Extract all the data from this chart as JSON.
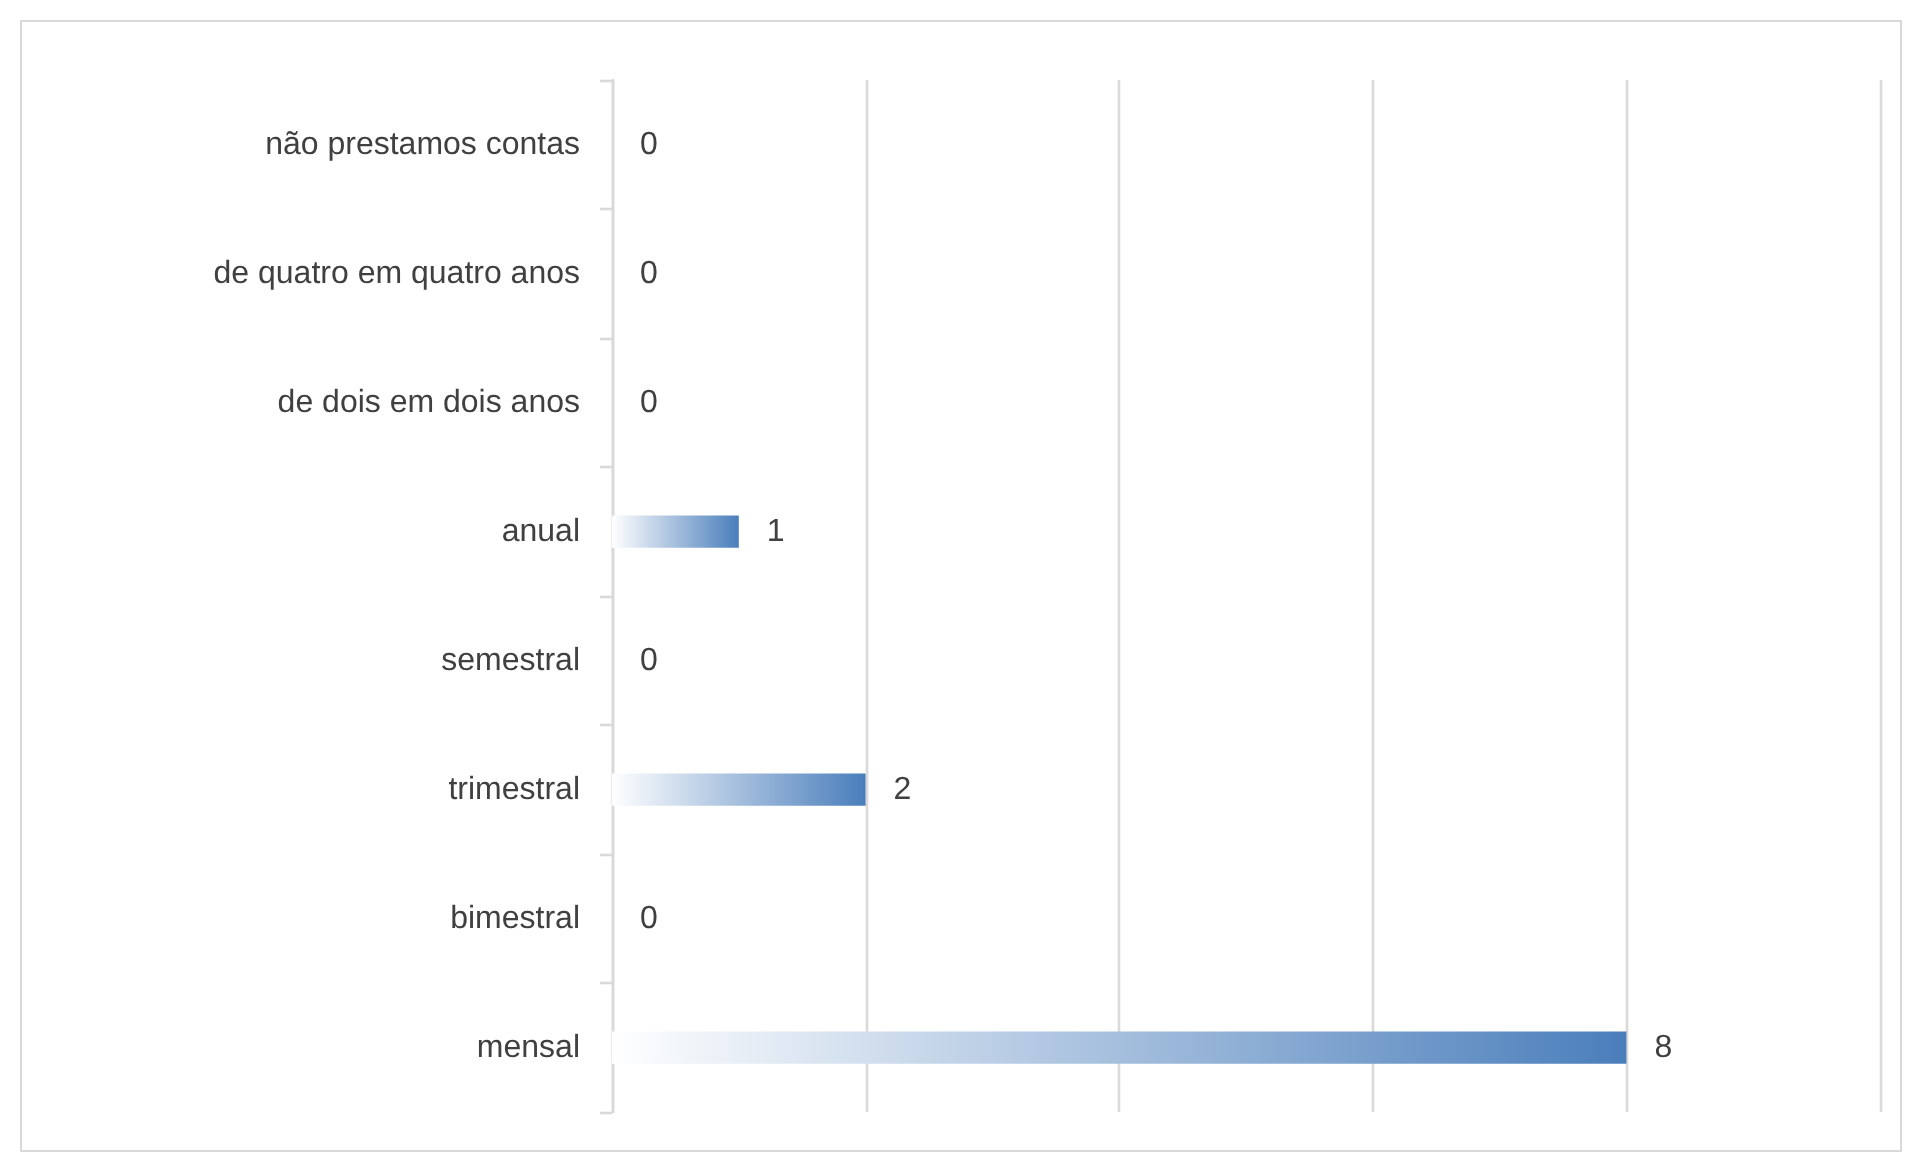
{
  "chart_data": {
    "type": "bar",
    "orientation": "horizontal",
    "categories": [
      "não prestamos contas",
      "de quatro em quatro anos",
      "de dois em dois anos",
      "anual",
      "semestral",
      "trimestral",
      "bimestral",
      "mensal"
    ],
    "values": [
      0,
      0,
      0,
      1,
      0,
      2,
      0,
      8
    ],
    "color": "#4a7ebb",
    "xlim": [
      0,
      10
    ],
    "xticks": [
      {
        "value": 0,
        "label": null
      },
      {
        "value": 2,
        "label": null
      },
      {
        "value": 4,
        "label": null
      },
      {
        "value": 6,
        "label": null
      },
      {
        "value": 8,
        "label": null
      },
      {
        "value": 10,
        "label": null
      }
    ],
    "tick_labels": "y",
    "grid": "x",
    "data_labels": true
  }
}
